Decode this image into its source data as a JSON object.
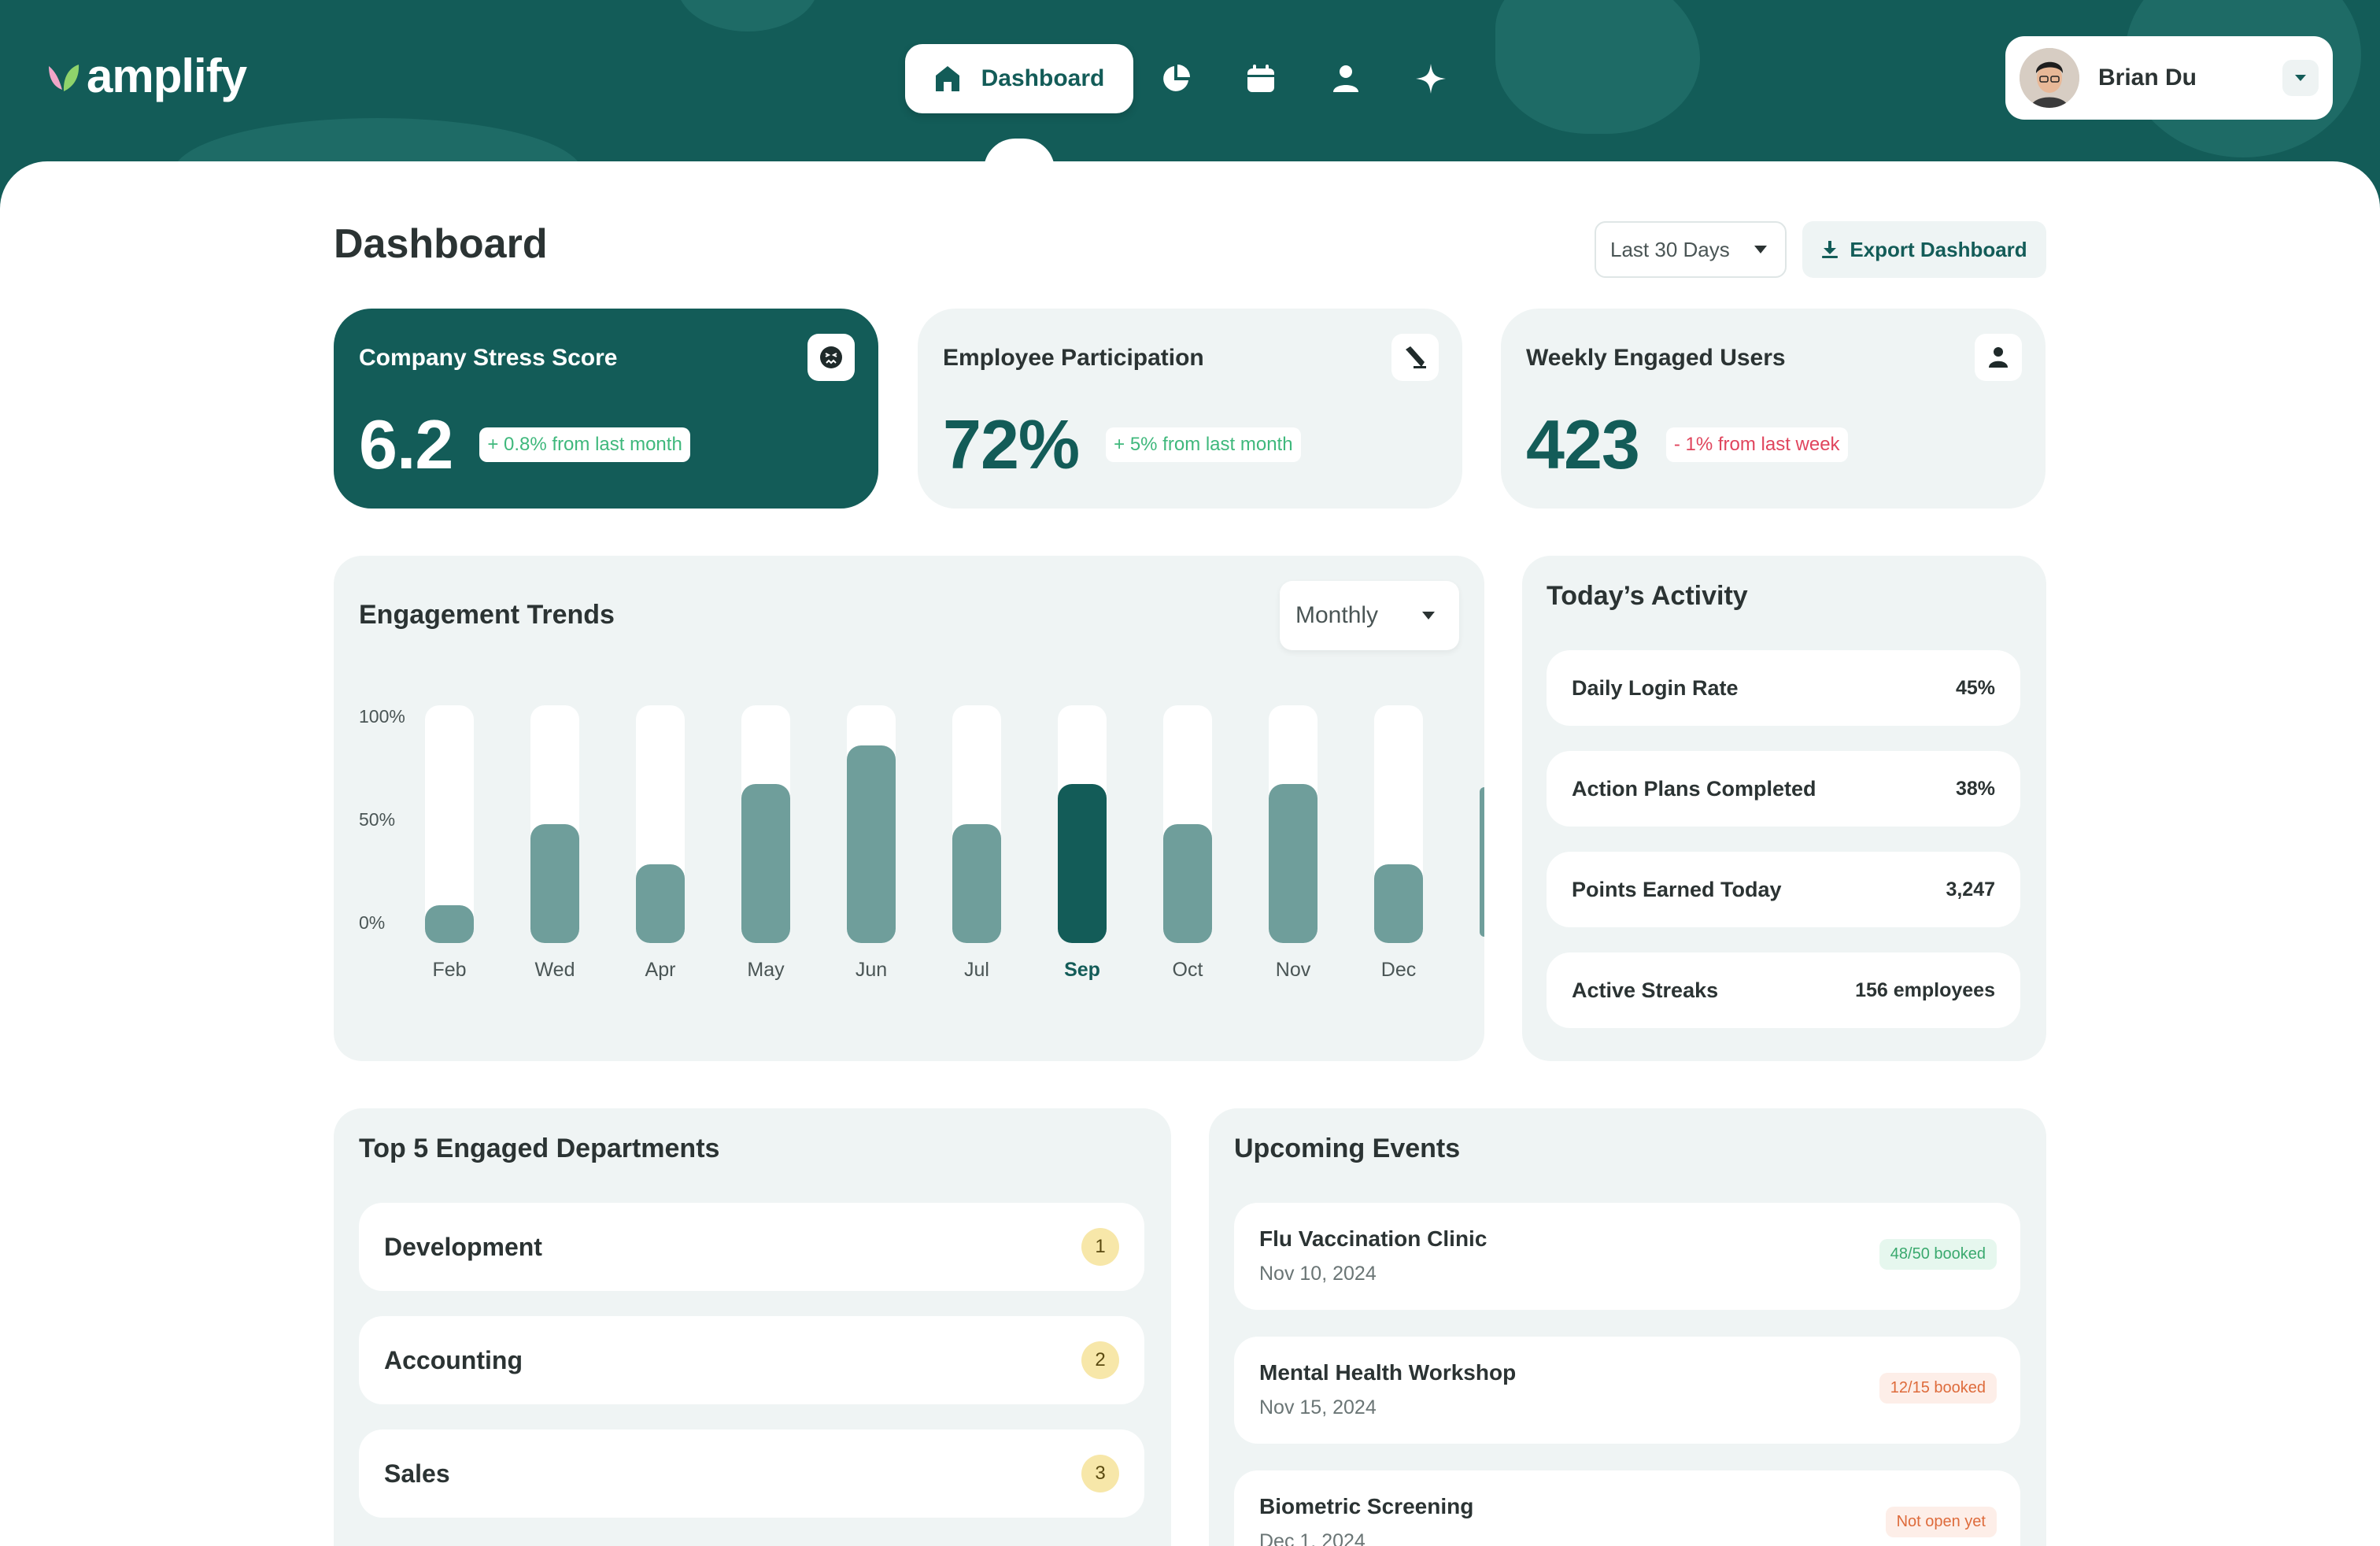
{
  "header": {
    "logo_text": "amplify",
    "nav": {
      "active_label": "Dashboard",
      "icons": [
        "home-icon",
        "pie-chart-icon",
        "calendar-icon",
        "user-icon",
        "sparkle-icon"
      ]
    },
    "user": {
      "name": "Brian Du"
    }
  },
  "page": {
    "title": "Dashboard",
    "range_select": "Last 30 Days",
    "export_label": "Export Dashboard"
  },
  "kpis": [
    {
      "title": "Company Stress Score",
      "value": "6.2",
      "delta": "+ 0.8% from last month",
      "icon": "stress-face-icon"
    },
    {
      "title": "Employee Participation",
      "value": "72%",
      "delta": "+ 5% from last month",
      "icon": "pen-icon"
    },
    {
      "title": "Weekly Engaged Users",
      "value": "423",
      "delta": "- 1% from last week",
      "icon": "user-icon"
    }
  ],
  "trends": {
    "title": "Engagement Trends",
    "period": "Monthly",
    "y_ticks": [
      "100%",
      "50%",
      "0%"
    ]
  },
  "chart_data": {
    "type": "bar",
    "categories": [
      "Feb",
      "Wed",
      "Apr",
      "May",
      "Jun",
      "Jul",
      "Sep",
      "Oct",
      "Nov",
      "Dec"
    ],
    "values": [
      16,
      50,
      33,
      67,
      83,
      50,
      67,
      50,
      67,
      33
    ],
    "ylim": [
      0,
      100
    ],
    "highlighted": "Sep",
    "colors": {
      "bar": "#6f9e9b",
      "active": "#135c58",
      "track": "#ffffff"
    }
  },
  "activity": {
    "title": "Today’s Activity",
    "items": [
      {
        "label": "Daily Login Rate",
        "value": "45%"
      },
      {
        "label": "Action Plans Completed",
        "value": "38%"
      },
      {
        "label": "Points Earned Today",
        "value": "3,247"
      },
      {
        "label": "Active Streaks",
        "value": "156 employees"
      }
    ]
  },
  "departments": {
    "title": "Top 5 Engaged Departments",
    "items": [
      {
        "name": "Development",
        "rank": "1"
      },
      {
        "name": "Accounting",
        "rank": "2"
      },
      {
        "name": "Sales",
        "rank": "3"
      }
    ]
  },
  "events": {
    "title": "Upcoming Events",
    "items": [
      {
        "title": "Flu Vaccination Clinic",
        "date": "Nov 10, 2024",
        "badge": "48/50 booked",
        "tone": "green"
      },
      {
        "title": "Mental Health Workshop",
        "date": "Nov 15, 2024",
        "badge": "12/15 booked",
        "tone": "orange"
      },
      {
        "title": "Biometric Screening",
        "date": "Dec 1, 2024",
        "badge": "Not open yet",
        "tone": "orange"
      }
    ]
  },
  "colors": {
    "brand": "#135c58",
    "surface": "#eff4f4",
    "positive": "#3fb87c",
    "negative": "#e0455d"
  }
}
